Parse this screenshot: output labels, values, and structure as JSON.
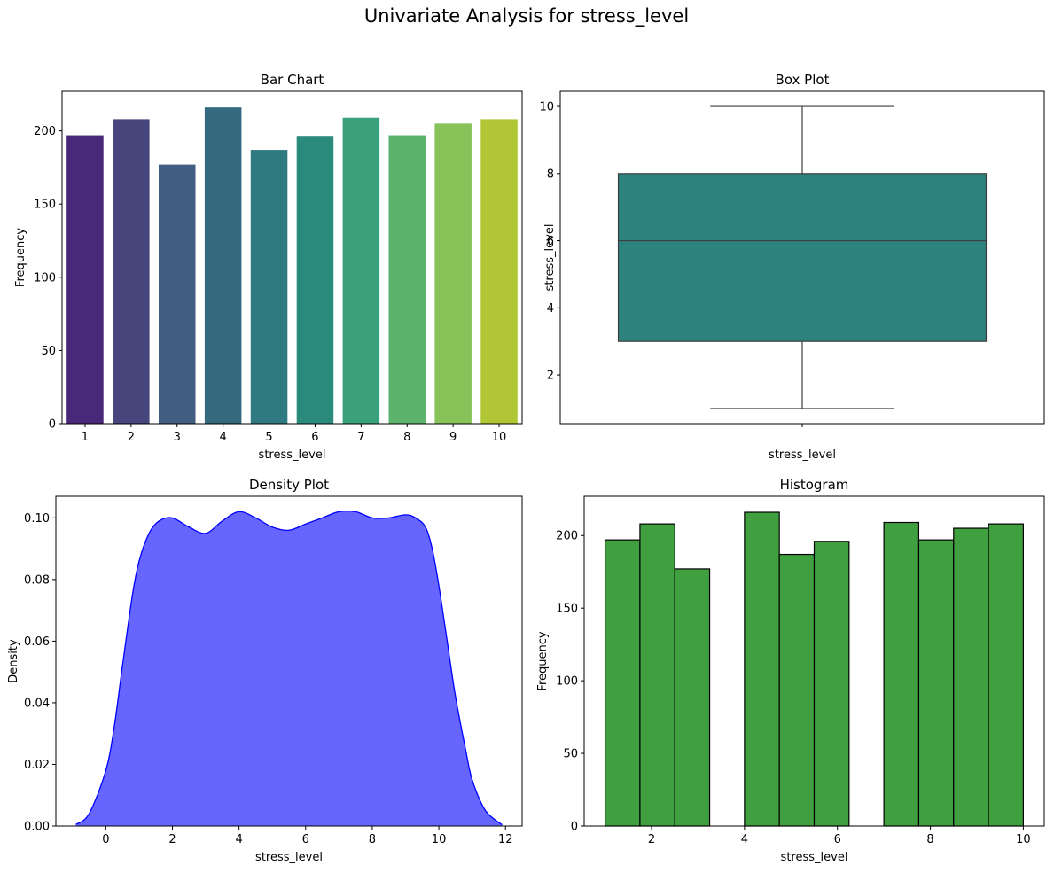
{
  "suptitle": "Univariate Analysis for stress_level",
  "chart_data": [
    {
      "type": "bar",
      "title": "Bar Chart",
      "xlabel": "stress_level",
      "ylabel": "Frequency",
      "categories": [
        "1",
        "2",
        "3",
        "4",
        "5",
        "6",
        "7",
        "8",
        "9",
        "10"
      ],
      "values": [
        197,
        208,
        177,
        216,
        187,
        196,
        209,
        197,
        205,
        208
      ],
      "colors": [
        "#482878",
        "#46457c",
        "#415d81",
        "#35697e",
        "#2e7a80",
        "#2a8b7c",
        "#3ba07c",
        "#5cb46c",
        "#88c35a",
        "#b0c635"
      ],
      "ylim": [
        0,
        227
      ],
      "yticks": [
        0,
        50,
        100,
        150,
        200
      ],
      "grid": false,
      "legend": "none"
    },
    {
      "type": "box",
      "title": "Box Plot",
      "xlabel": "stress_level",
      "ylabel": "stress_level",
      "min": 1,
      "q1": 3,
      "median": 6,
      "q3": 8,
      "max": 10,
      "color": "#2e827d",
      "ylim": [
        0.55,
        10.45
      ],
      "yticks": [
        2,
        4,
        6,
        8,
        10
      ],
      "grid": false
    },
    {
      "type": "area",
      "title": "Density Plot",
      "xlabel": "stress_level",
      "ylabel": "Density",
      "x": [
        -0.9,
        -0.5,
        0,
        0.25,
        0.5,
        0.8,
        1,
        1.3,
        1.6,
        2,
        2.5,
        3,
        3.5,
        4,
        4.5,
        5,
        5.5,
        6,
        6.5,
        7,
        7.5,
        8,
        8.5,
        9,
        9.3,
        9.6,
        9.8,
        10,
        10.25,
        10.5,
        10.8,
        11,
        11.4,
        11.9
      ],
      "y": [
        0.0005,
        0.004,
        0.018,
        0.032,
        0.052,
        0.075,
        0.086,
        0.095,
        0.099,
        0.1,
        0.097,
        0.095,
        0.099,
        0.102,
        0.1,
        0.097,
        0.096,
        0.098,
        0.1,
        0.102,
        0.102,
        0.1,
        0.1,
        0.101,
        0.1,
        0.097,
        0.09,
        0.078,
        0.06,
        0.042,
        0.025,
        0.015,
        0.005,
        0.0004
      ],
      "fill": "#6666ff",
      "line": "#0000ff",
      "xlim": [
        -1.5,
        12.5
      ],
      "ylim": [
        0,
        0.107
      ],
      "xticks": [
        0,
        2,
        4,
        6,
        8,
        10,
        12
      ],
      "yticks": [
        "0.00",
        "0.02",
        "0.04",
        "0.06",
        "0.08",
        "0.10"
      ],
      "grid": false
    },
    {
      "type": "bar",
      "title": "Histogram",
      "xlabel": "stress_level",
      "ylabel": "Frequency",
      "bin_edges": [
        1,
        1.75,
        2.5,
        3.25,
        4,
        4.75,
        5.5,
        6.25,
        7,
        7.75,
        8.5,
        9.25,
        10
      ],
      "values": [
        197,
        208,
        177,
        0,
        216,
        187,
        196,
        0,
        209,
        197,
        205,
        208
      ],
      "color": "#40a040",
      "xlim": [
        0.55,
        10.45
      ],
      "ylim": [
        0,
        227
      ],
      "xticks": [
        2,
        4,
        6,
        8,
        10
      ],
      "yticks": [
        0,
        50,
        100,
        150,
        200
      ],
      "grid": false
    }
  ]
}
